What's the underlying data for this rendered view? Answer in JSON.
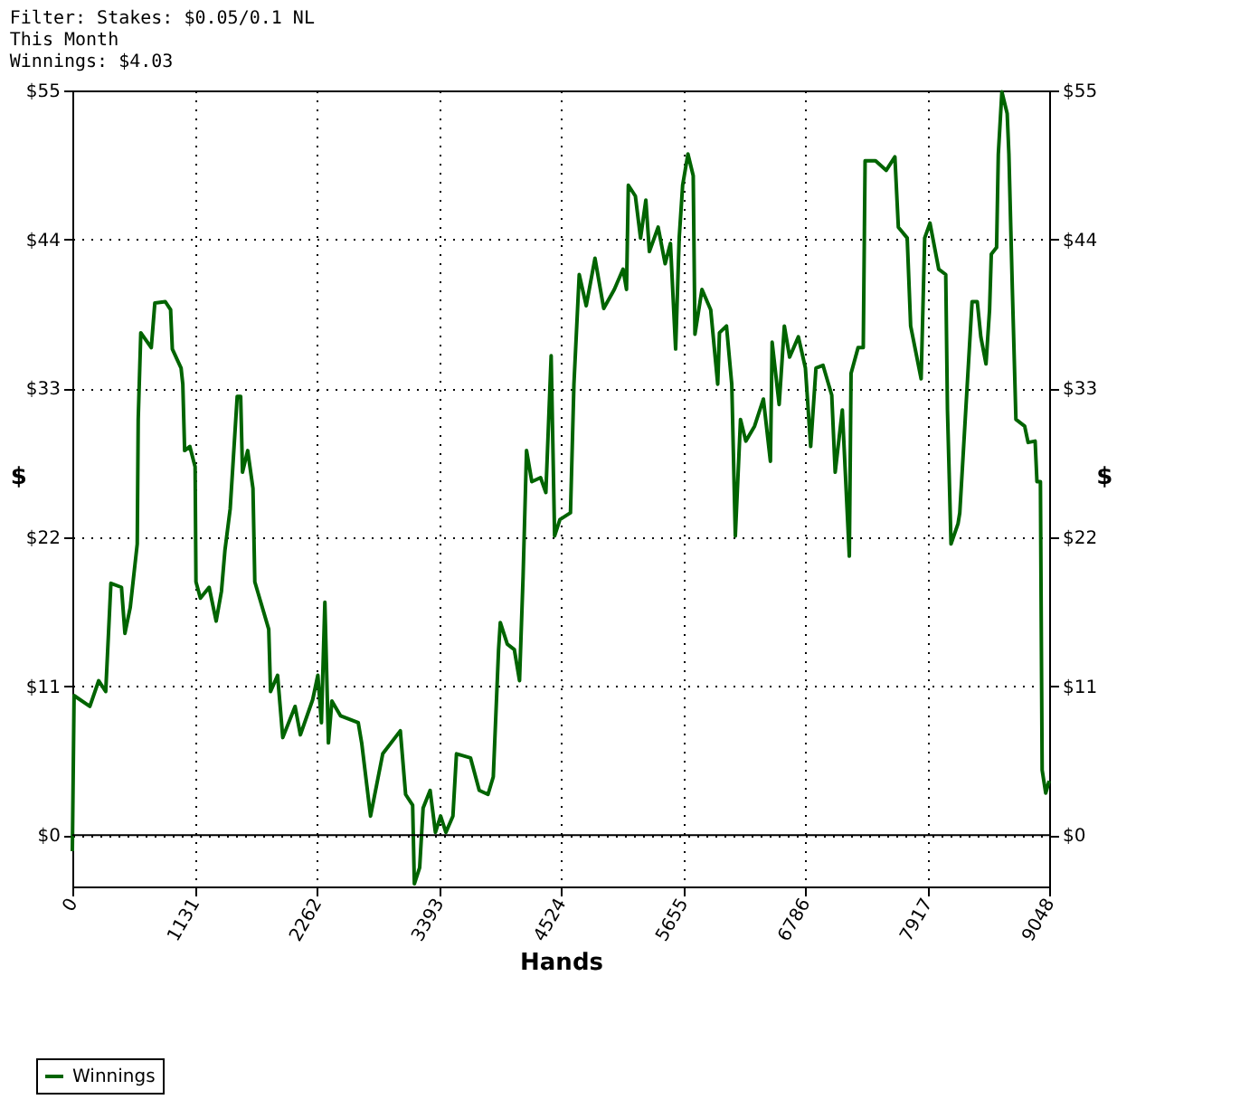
{
  "chart_data": {
    "type": "line",
    "annotations": [
      "Filter: Stakes: $0.05/0.1 NL",
      "This Month",
      "Winnings: $4.03"
    ],
    "xlabel": "Hands",
    "ylabel": "$",
    "y2label": "$",
    "x": [
      0,
      16,
      162,
      244,
      309,
      357,
      455,
      487,
      536,
      601,
      610,
      634,
      731,
      764,
      861,
      910,
      926,
      1007,
      1023,
      1040,
      1088,
      1137,
      1145,
      1186,
      1267,
      1332,
      1381,
      1413,
      1462,
      1527,
      1559,
      1576,
      1624,
      1673,
      1690,
      1738,
      1819,
      1836,
      1901,
      1949,
      2063,
      2112,
      2226,
      2274,
      2307,
      2339,
      2372,
      2404,
      2485,
      2648,
      2680,
      2762,
      2875,
      3038,
      3087,
      3152,
      3168,
      3217,
      3249,
      3314,
      3363,
      3411,
      3460,
      3525,
      3558,
      3688,
      3769,
      3850,
      3899,
      3948,
      3964,
      4029,
      4094,
      4142,
      4175,
      4207,
      4256,
      4337,
      4386,
      4435,
      4467,
      4516,
      4614,
      4646,
      4695,
      4760,
      4841,
      4922,
      5020,
      5101,
      5133,
      5150,
      5215,
      5263,
      5312,
      5345,
      5426,
      5491,
      5540,
      5588,
      5621,
      5653,
      5702,
      5751,
      5767,
      5832,
      5913,
      5978,
      5994,
      6059,
      6108,
      6141,
      6189,
      6238,
      6319,
      6401,
      6466,
      6482,
      6547,
      6595,
      6644,
      6725,
      6790,
      6839,
      6888,
      6953,
      7034,
      7066,
      7132,
      7197,
      7213,
      7278,
      7326,
      7343,
      7440,
      7538,
      7619,
      7651,
      7733,
      7765,
      7862,
      7895,
      7944,
      8025,
      8090,
      8106,
      8139,
      8204,
      8220,
      8334,
      8382,
      8415,
      8463,
      8496,
      8512,
      8561,
      8577,
      8610,
      8659,
      8675,
      8707,
      8740,
      8821,
      8853,
      8918,
      8935,
      8967,
      8975,
      8983,
      9016,
      9048
    ],
    "series": [
      {
        "name": "Winnings",
        "color": "#006400",
        "values": [
          -1.2,
          10.3,
          9.5,
          11.4,
          10.6,
          18.6,
          18.3,
          14.9,
          16.8,
          21.5,
          30.7,
          37.1,
          36,
          39.3,
          39.4,
          38.8,
          35.9,
          34.5,
          33.3,
          28.4,
          28.7,
          27.2,
          18.7,
          17.5,
          18.3,
          15.8,
          18,
          21,
          24.1,
          32.4,
          32.4,
          26.8,
          28.4,
          25.6,
          18.7,
          17.4,
          15.2,
          10.6,
          11.8,
          7.2,
          9.5,
          7.4,
          10,
          11.8,
          8.3,
          17.2,
          6.8,
          9.9,
          8.8,
          8.3,
          6.8,
          1.4,
          6,
          7.7,
          3,
          2.2,
          -3.6,
          -2.4,
          2,
          3.3,
          0.2,
          1.4,
          0.2,
          1.4,
          6,
          5.7,
          3.3,
          3,
          4.3,
          13.7,
          15.7,
          14.1,
          13.7,
          11.4,
          19.1,
          28.4,
          26.1,
          26.4,
          25.3,
          35.4,
          22.1,
          23.3,
          23.8,
          33.3,
          41.4,
          39.1,
          42.6,
          38.9,
          40.3,
          41.8,
          40.3,
          48,
          47.2,
          44.1,
          46.9,
          43.1,
          44.9,
          42.2,
          43.7,
          35.9,
          44.1,
          48,
          50.3,
          48.7,
          37,
          40.3,
          38.8,
          33.3,
          37.1,
          37.6,
          33.3,
          22.1,
          30.7,
          29.1,
          30.2,
          32.2,
          27.6,
          36.4,
          31.8,
          37.6,
          35.3,
          36.8,
          34.5,
          28.7,
          34.5,
          34.7,
          32.5,
          26.8,
          31.4,
          20.6,
          34.1,
          36,
          36,
          49.8,
          49.8,
          49.1,
          50.1,
          44.9,
          44.1,
          37.6,
          33.7,
          44.1,
          45.2,
          41.8,
          41.4,
          31.4,
          21.5,
          23,
          23.8,
          39.4,
          39.4,
          36.8,
          34.8,
          38.8,
          42.9,
          43.4,
          50.3,
          54.9,
          53.3,
          50.3,
          40.3,
          30.7,
          30.2,
          29,
          29.1,
          26.1,
          26.1,
          15.2,
          4.8,
          3.1,
          4.0
        ]
      }
    ],
    "xlim": [
      0,
      9048
    ],
    "xticks": [
      0,
      1131,
      2262,
      3393,
      4524,
      5655,
      6786,
      7917,
      9048
    ],
    "ylim": [
      -3.8,
      55
    ],
    "yticks": [
      {
        "value": 0,
        "label": "$0"
      },
      {
        "value": 11,
        "label": "$11"
      },
      {
        "value": 22,
        "label": "$22"
      },
      {
        "value": 33,
        "label": "$33"
      },
      {
        "value": 44,
        "label": "$44"
      },
      {
        "value": 55,
        "label": "$55"
      }
    ],
    "y2lim": [
      -3.8,
      55
    ],
    "y2ticks": [
      {
        "value": 0,
        "label": "$0"
      },
      {
        "value": 11,
        "label": "$11"
      },
      {
        "value": 22,
        "label": "$22"
      },
      {
        "value": 33,
        "label": "$33"
      },
      {
        "value": 44,
        "label": "$44"
      },
      {
        "value": 55,
        "label": "$55"
      }
    ],
    "ref_lines": [
      {
        "axis": "y",
        "value": 0,
        "color": "#000000",
        "line_style": "solid"
      }
    ],
    "grid": true,
    "legend": "bottom left",
    "marker": "none",
    "line_style": "solid"
  }
}
